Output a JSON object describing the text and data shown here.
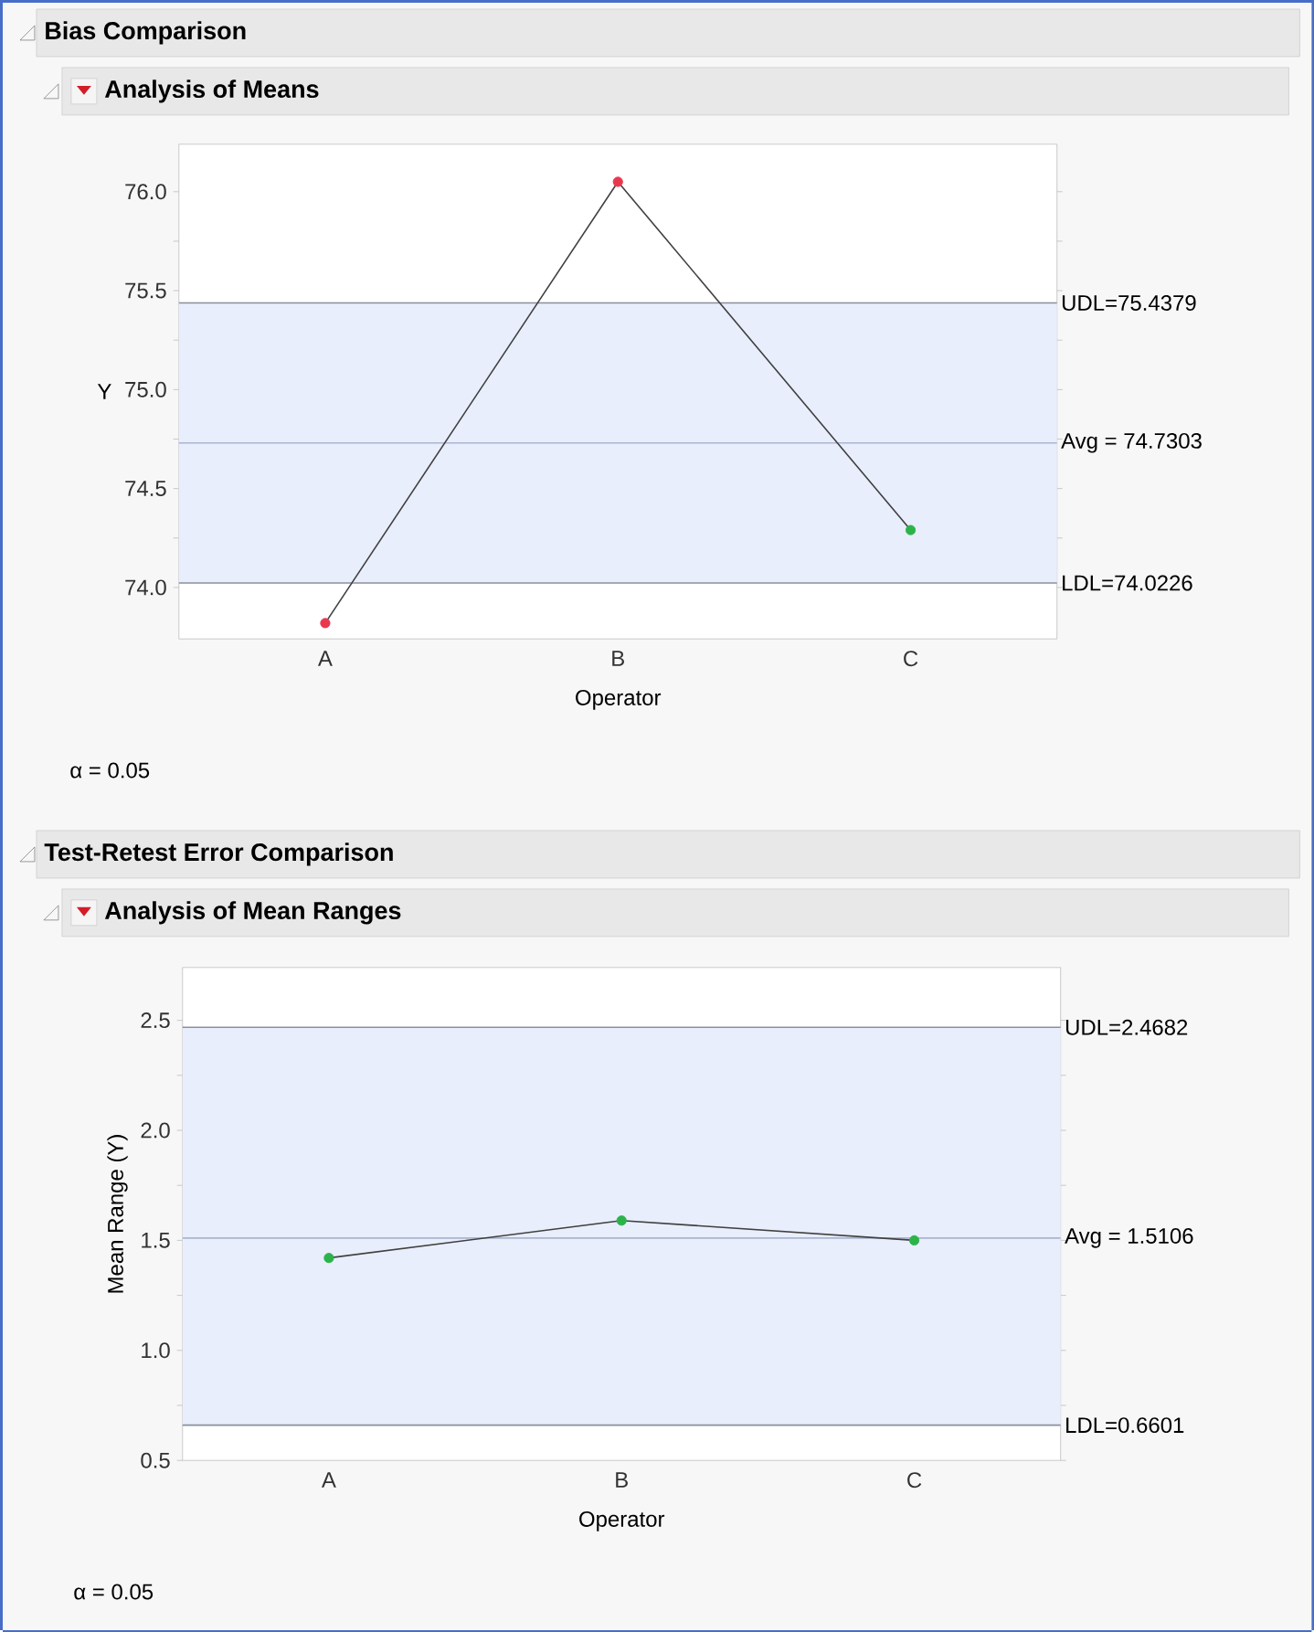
{
  "chart_data": [
    {
      "type": "line",
      "title": "Bias Comparison",
      "subtitle": "Analysis of Means",
      "xlabel": "Operator",
      "ylabel": "Y",
      "categories": [
        "A",
        "B",
        "C"
      ],
      "series": [
        {
          "color": "#404040",
          "colors": [
            "#e8384f",
            "#e8384f",
            "#2bb34a"
          ],
          "values": [
            73.82,
            76.05,
            74.29
          ]
        }
      ],
      "ylim": [
        73.74,
        76.24
      ],
      "yticks": [
        {
          "value": 74,
          "label": "74.0"
        },
        {
          "value": 74.25,
          "label": null
        },
        {
          "value": 74.5,
          "label": "74.5"
        },
        {
          "value": 74.75,
          "label": null
        },
        {
          "value": 75,
          "label": "75.0"
        },
        {
          "value": 75.25,
          "label": null
        },
        {
          "value": 75.5,
          "label": "75.5"
        },
        {
          "value": 75.75,
          "label": null
        },
        {
          "value": 76,
          "label": "76.0"
        }
      ],
      "ref_lines": [
        {
          "axis": "y",
          "value": 75.4379,
          "label": "UDL=75.4379",
          "color": "#8c8f9c"
        },
        {
          "axis": "y",
          "value": 74.7303,
          "label": "Avg = 74.7303",
          "color": "#aab6cf"
        },
        {
          "axis": "y",
          "value": 74.0226,
          "label": "LDL=74.0226",
          "color": "#8c8f9c"
        }
      ],
      "bands": [
        {
          "axis": "y",
          "from": 74.0226,
          "to": 75.4379,
          "color": "#e8eefc"
        }
      ],
      "annotations": [
        "α = 0.05"
      ],
      "marker": "circle"
    },
    {
      "type": "line",
      "title": "Test-Retest Error Comparison",
      "subtitle": "Analysis of Mean Ranges",
      "xlabel": "Operator",
      "ylabel": "Mean Range (Y)",
      "categories": [
        "A",
        "B",
        "C"
      ],
      "series": [
        {
          "color": "#404040",
          "colors": [
            "#2bb34a",
            "#2bb34a",
            "#2bb34a"
          ],
          "values": [
            1.42,
            1.59,
            1.5
          ]
        }
      ],
      "ylim": [
        0.5,
        2.74
      ],
      "yticks": [
        {
          "value": 0.5,
          "label": "0.5"
        },
        {
          "value": 0.75,
          "label": null
        },
        {
          "value": 1,
          "label": "1.0"
        },
        {
          "value": 1.25,
          "label": null
        },
        {
          "value": 1.5,
          "label": "1.5"
        },
        {
          "value": 1.75,
          "label": null
        },
        {
          "value": 2,
          "label": "2.0"
        },
        {
          "value": 2.25,
          "label": null
        },
        {
          "value": 2.5,
          "label": "2.5"
        }
      ],
      "ref_lines": [
        {
          "axis": "y",
          "value": 2.4682,
          "label": "UDL=2.4682",
          "color": "#8c8f9c"
        },
        {
          "axis": "y",
          "value": 1.5106,
          "label": "Avg = 1.5106",
          "color": "#aab6cf"
        },
        {
          "axis": "y",
          "value": 0.6601,
          "label": "LDL=0.6601",
          "color": "#8c8f9c"
        }
      ],
      "bands": [
        {
          "axis": "y",
          "from": 0.6601,
          "to": 2.4682,
          "color": "#e8eefc"
        }
      ],
      "annotations": [
        "α = 0.05"
      ],
      "marker": "circle"
    }
  ]
}
